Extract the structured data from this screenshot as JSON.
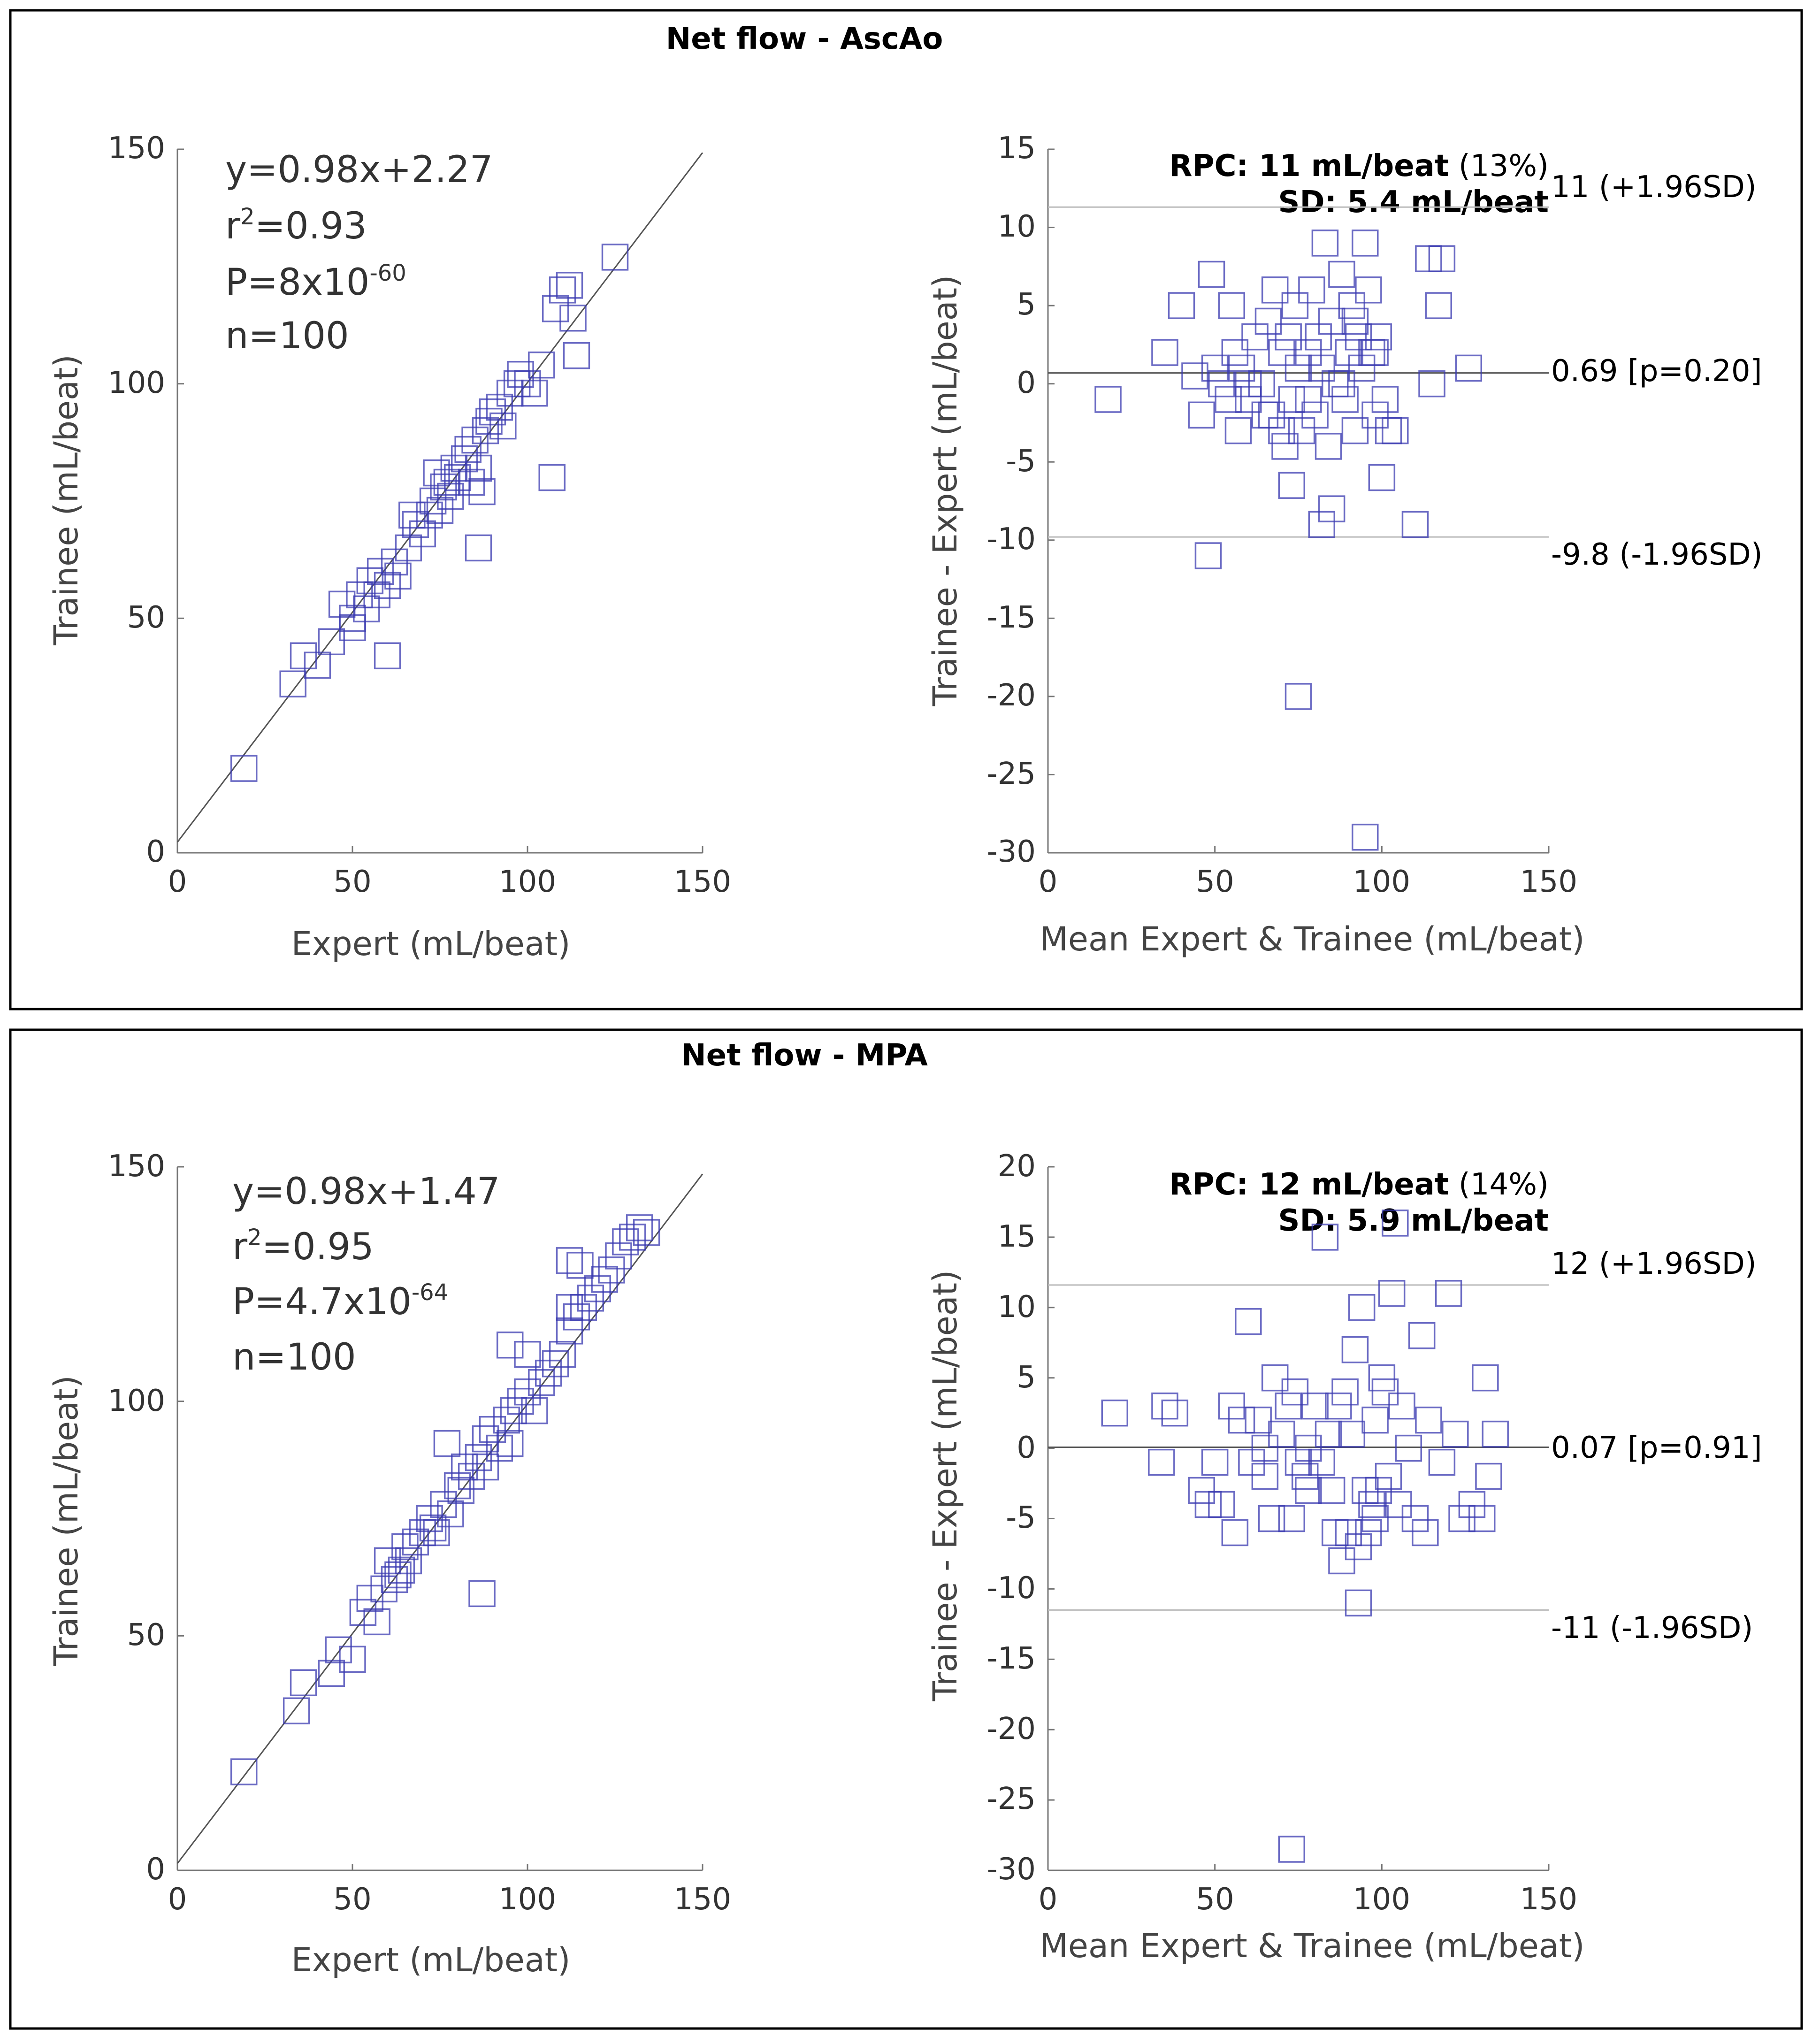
{
  "chart_data": [
    {
      "panel_title": "Net flow - AscAo",
      "scatter": {
        "type": "scatter",
        "xlabel": "Expert (mL/beat)",
        "ylabel": "Trainee (mL/beat)",
        "xlim": [
          0,
          150
        ],
        "ylim": [
          0,
          150
        ],
        "xticks": [
          "0",
          "50",
          "100",
          "150"
        ],
        "yticks": [
          "0",
          "50",
          "100",
          "150"
        ],
        "fit": {
          "slope": 0.98,
          "intercept": 2.27
        },
        "stats": {
          "equation": "y=0.98x+2.27",
          "r2_prefix": "r",
          "r2_exp": "2",
          "r2_value": "=0.93",
          "p_base": "P=8x10",
          "p_exp": "-60",
          "n": "n=100"
        },
        "points": [
          [
            19,
            18
          ],
          [
            33,
            36
          ],
          [
            36,
            42
          ],
          [
            40,
            40
          ],
          [
            44,
            45
          ],
          [
            47,
            53
          ],
          [
            50,
            50
          ],
          [
            52,
            55
          ],
          [
            54,
            52
          ],
          [
            55,
            58
          ],
          [
            57,
            55
          ],
          [
            58,
            60
          ],
          [
            60,
            57
          ],
          [
            62,
            62
          ],
          [
            63,
            59
          ],
          [
            66,
            65
          ],
          [
            68,
            70
          ],
          [
            70,
            68
          ],
          [
            72,
            72
          ],
          [
            73,
            75
          ],
          [
            75,
            73
          ],
          [
            76,
            78
          ],
          [
            78,
            76
          ],
          [
            79,
            82
          ],
          [
            80,
            80
          ],
          [
            82,
            84
          ],
          [
            83,
            86
          ],
          [
            85,
            88
          ],
          [
            86,
            82
          ],
          [
            88,
            90
          ],
          [
            89,
            92
          ],
          [
            90,
            94
          ],
          [
            92,
            95
          ],
          [
            93,
            91
          ],
          [
            95,
            98
          ],
          [
            97,
            100
          ],
          [
            98,
            102
          ],
          [
            100,
            100
          ],
          [
            102,
            98
          ],
          [
            104,
            104
          ],
          [
            108,
            116
          ],
          [
            110,
            120
          ],
          [
            112,
            121
          ],
          [
            113,
            114
          ],
          [
            114,
            106
          ],
          [
            107,
            80
          ],
          [
            86,
            65
          ],
          [
            125,
            127
          ],
          [
            60,
            42
          ],
          [
            50,
            48
          ],
          [
            67,
            72
          ],
          [
            74,
            81
          ],
          [
            77,
            79
          ],
          [
            84,
            79
          ],
          [
            87,
            77
          ]
        ]
      },
      "bland_altman": {
        "type": "scatter",
        "xlabel": "Mean Expert & Trainee (mL/beat)",
        "ylabel": "Trainee - Expert (mL/beat)",
        "xlim": [
          0,
          150
        ],
        "ylim": [
          -30,
          15
        ],
        "xticks": [
          "0",
          "50",
          "100",
          "150"
        ],
        "yticks": [
          "15",
          "10",
          "5",
          "0",
          "-5",
          "-10",
          "-15",
          "-20",
          "-25",
          "-30"
        ],
        "rpc_text": "RPC: 11 mL/beat",
        "rpc_pct": " (13%)",
        "sd_text": "SD: 5.4 mL/beat",
        "mean_bias": 0.69,
        "upper_loa": 11.3,
        "lower_loa": -9.8,
        "upper_label": "11 (+1.96SD)",
        "mean_label": "0.69 [p=0.20]",
        "lower_label": "-9.8 (-1.96SD)",
        "points": [
          [
            18,
            -1
          ],
          [
            35,
            2
          ],
          [
            40,
            5
          ],
          [
            44,
            0.5
          ],
          [
            46,
            -2
          ],
          [
            49,
            7
          ],
          [
            50,
            1
          ],
          [
            52,
            0
          ],
          [
            55,
            5
          ],
          [
            56,
            2
          ],
          [
            57,
            -3
          ],
          [
            58,
            1
          ],
          [
            60,
            -1
          ],
          [
            62,
            3
          ],
          [
            64,
            0
          ],
          [
            66,
            4
          ],
          [
            67,
            -2
          ],
          [
            68,
            6
          ],
          [
            70,
            2
          ],
          [
            71,
            -4
          ],
          [
            72,
            3
          ],
          [
            73,
            -1
          ],
          [
            74,
            5
          ],
          [
            75,
            1
          ],
          [
            76,
            -3
          ],
          [
            78,
            2
          ],
          [
            79,
            6
          ],
          [
            80,
            -2
          ],
          [
            81,
            3
          ],
          [
            82,
            1
          ],
          [
            83,
            9
          ],
          [
            84,
            -4
          ],
          [
            85,
            4
          ],
          [
            86,
            0
          ],
          [
            88,
            7
          ],
          [
            89,
            -1
          ],
          [
            90,
            2
          ],
          [
            91,
            5
          ],
          [
            92,
            -3
          ],
          [
            93,
            3
          ],
          [
            94,
            1
          ],
          [
            95,
            9
          ],
          [
            96,
            6
          ],
          [
            97,
            2
          ],
          [
            98,
            -2
          ],
          [
            99,
            3
          ],
          [
            100,
            -6
          ],
          [
            101,
            -1
          ],
          [
            102,
            -3
          ],
          [
            104,
            -3
          ],
          [
            110,
            -9
          ],
          [
            114,
            8
          ],
          [
            115,
            0
          ],
          [
            117,
            5
          ],
          [
            118,
            8
          ],
          [
            126,
            1
          ],
          [
            48,
            -11
          ],
          [
            75,
            -20
          ],
          [
            95,
            -29
          ],
          [
            73,
            -6.5
          ],
          [
            82,
            -9
          ],
          [
            85,
            -8
          ],
          [
            65,
            -2
          ],
          [
            60,
            0
          ],
          [
            78,
            -1
          ],
          [
            88,
            0
          ],
          [
            54,
            -1
          ],
          [
            70,
            -3
          ],
          [
            92,
            4
          ],
          [
            98,
            2
          ]
        ]
      }
    },
    {
      "panel_title": "Net flow - MPA",
      "scatter": {
        "type": "scatter",
        "xlabel": "Expert (mL/beat)",
        "ylabel": "Trainee (mL/beat)",
        "xlim": [
          0,
          150
        ],
        "ylim": [
          0,
          150
        ],
        "xticks": [
          "0",
          "50",
          "100",
          "150"
        ],
        "yticks": [
          "0",
          "50",
          "100",
          "150"
        ],
        "fit": {
          "slope": 0.98,
          "intercept": 1.47
        },
        "stats": {
          "equation": "y=0.98x+1.47",
          "r2_prefix": "r",
          "r2_exp": "2",
          "r2_value": "=0.95",
          "p_base": "P=4.7x10",
          "p_exp": "-64",
          "n": "n=100"
        },
        "points": [
          [
            19,
            21
          ],
          [
            34,
            34
          ],
          [
            36,
            40
          ],
          [
            44,
            42
          ],
          [
            46,
            47
          ],
          [
            50,
            45
          ],
          [
            53,
            55
          ],
          [
            55,
            58
          ],
          [
            57,
            53
          ],
          [
            59,
            60
          ],
          [
            60,
            66
          ],
          [
            62,
            62
          ],
          [
            64,
            64
          ],
          [
            65,
            69
          ],
          [
            66,
            66
          ],
          [
            68,
            70
          ],
          [
            70,
            72
          ],
          [
            72,
            75
          ],
          [
            74,
            72
          ],
          [
            76,
            78
          ],
          [
            78,
            76
          ],
          [
            80,
            82
          ],
          [
            82,
            86
          ],
          [
            84,
            84
          ],
          [
            86,
            88
          ],
          [
            88,
            92
          ],
          [
            90,
            94
          ],
          [
            92,
            90
          ],
          [
            94,
            96
          ],
          [
            96,
            98
          ],
          [
            98,
            100
          ],
          [
            100,
            102
          ],
          [
            102,
            98
          ],
          [
            104,
            104
          ],
          [
            106,
            106
          ],
          [
            108,
            108
          ],
          [
            110,
            110
          ],
          [
            112,
            115
          ],
          [
            114,
            118
          ],
          [
            116,
            120
          ],
          [
            118,
            122
          ],
          [
            120,
            124
          ],
          [
            122,
            126
          ],
          [
            124,
            128
          ],
          [
            126,
            131
          ],
          [
            128,
            134
          ],
          [
            130,
            135
          ],
          [
            132,
            137
          ],
          [
            134,
            136
          ],
          [
            112,
            130
          ],
          [
            115,
            129
          ],
          [
            112,
            120
          ],
          [
            87,
            59
          ],
          [
            77,
            91
          ],
          [
            95,
            112
          ],
          [
            100,
            110
          ],
          [
            73,
            73
          ],
          [
            81,
            81
          ],
          [
            63,
            63
          ],
          [
            88,
            86
          ],
          [
            95,
            91
          ]
        ]
      },
      "bland_altman": {
        "type": "scatter",
        "xlabel": "Mean Expert & Trainee (mL/beat)",
        "ylabel": "Trainee - Expert (mL/beat)",
        "xlim": [
          0,
          150
        ],
        "ylim": [
          -30,
          20
        ],
        "xticks": [
          "0",
          "50",
          "100",
          "150"
        ],
        "yticks": [
          "20",
          "15",
          "10",
          "5",
          "0",
          "-5",
          "-10",
          "-15",
          "-20",
          "-25",
          "-30"
        ],
        "rpc_text": "RPC: 12 mL/beat",
        "rpc_pct": " (14%)",
        "sd_text": "SD: 5.9 mL/beat",
        "mean_bias": 0.07,
        "upper_loa": 11.6,
        "lower_loa": -11.5,
        "upper_label": "12 (+1.96SD)",
        "mean_label": "0.07 [p=0.91]",
        "lower_label": "-11 (-1.96SD)",
        "points": [
          [
            20,
            2.5
          ],
          [
            35,
            3
          ],
          [
            38,
            2.5
          ],
          [
            34,
            -1
          ],
          [
            46,
            -3
          ],
          [
            48,
            -4
          ],
          [
            50,
            -1
          ],
          [
            52,
            -4
          ],
          [
            55,
            3
          ],
          [
            56,
            -6
          ],
          [
            58,
            2
          ],
          [
            60,
            9
          ],
          [
            61,
            -1
          ],
          [
            63,
            2
          ],
          [
            65,
            -2
          ],
          [
            67,
            -5
          ],
          [
            68,
            5
          ],
          [
            70,
            1
          ],
          [
            72,
            3
          ],
          [
            73,
            -5
          ],
          [
            74,
            4
          ],
          [
            75,
            -1
          ],
          [
            77,
            -2
          ],
          [
            78,
            0
          ],
          [
            80,
            3
          ],
          [
            82,
            -1
          ],
          [
            83,
            15
          ],
          [
            84,
            1
          ],
          [
            85,
            -3
          ],
          [
            86,
            -6
          ],
          [
            87,
            3
          ],
          [
            88,
            -8
          ],
          [
            89,
            4
          ],
          [
            90,
            -6
          ],
          [
            91,
            1
          ],
          [
            92,
            7
          ],
          [
            93,
            -7
          ],
          [
            94,
            10
          ],
          [
            95,
            -3
          ],
          [
            96,
            -6
          ],
          [
            97,
            -4
          ],
          [
            98,
            2
          ],
          [
            99,
            -3
          ],
          [
            100,
            5
          ],
          [
            101,
            4
          ],
          [
            102,
            -2
          ],
          [
            103,
            11
          ],
          [
            104,
            16
          ],
          [
            105,
            -4
          ],
          [
            106,
            3
          ],
          [
            108,
            0
          ],
          [
            110,
            -5
          ],
          [
            112,
            8
          ],
          [
            113,
            -6
          ],
          [
            114,
            2
          ],
          [
            118,
            -1
          ],
          [
            120,
            11
          ],
          [
            122,
            1
          ],
          [
            124,
            -5
          ],
          [
            127,
            -4
          ],
          [
            130,
            -5
          ],
          [
            131,
            5
          ],
          [
            132,
            -2
          ],
          [
            134,
            1
          ],
          [
            73,
            -28.5
          ],
          [
            93,
            -11
          ],
          [
            65,
            0
          ],
          [
            78,
            -3
          ],
          [
            98,
            -5
          ]
        ]
      }
    }
  ]
}
